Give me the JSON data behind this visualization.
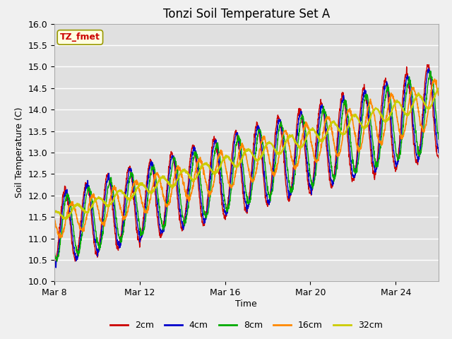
{
  "title": "Tonzi Soil Temperature Set A",
  "xlabel": "Time",
  "ylabel": "Soil Temperature (C)",
  "ylim": [
    10.0,
    16.0
  ],
  "yticks": [
    10.0,
    10.5,
    11.0,
    11.5,
    12.0,
    12.5,
    13.0,
    13.5,
    14.0,
    14.5,
    15.0,
    15.5,
    16.0
  ],
  "xtick_positions": [
    0,
    4,
    8,
    12,
    16
  ],
  "xtick_labels": [
    "Mar 8",
    "Mar 12",
    "Mar 16",
    "Mar 20",
    "Mar 24"
  ],
  "n_days": 18.0,
  "colors": {
    "2cm": "#cc0000",
    "4cm": "#0000cc",
    "8cm": "#00aa00",
    "16cm": "#ff8800",
    "32cm": "#cccc00"
  },
  "legend_label": "TZ_fmet",
  "fig_bg": "#f0f0f0",
  "plot_bg": "#e0e0e0"
}
